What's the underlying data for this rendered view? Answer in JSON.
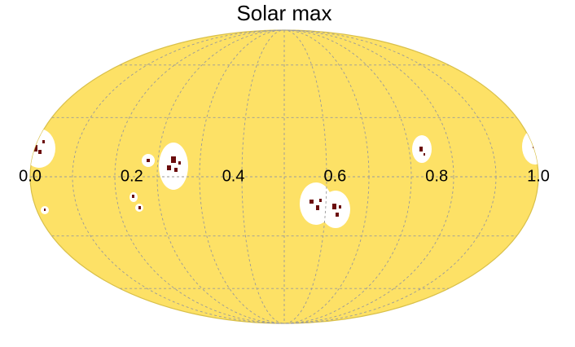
{
  "chart_data": {
    "type": "mollweide",
    "title": "Solar max",
    "xlim": [
      0,
      1
    ],
    "xticks": [
      {
        "value": 0,
        "label": "0.0"
      },
      0.2,
      0.4,
      0.6,
      0.8,
      {
        "value": 1,
        "label": "1.0"
      }
    ],
    "grid": true,
    "color": "#fde166"
  }
}
